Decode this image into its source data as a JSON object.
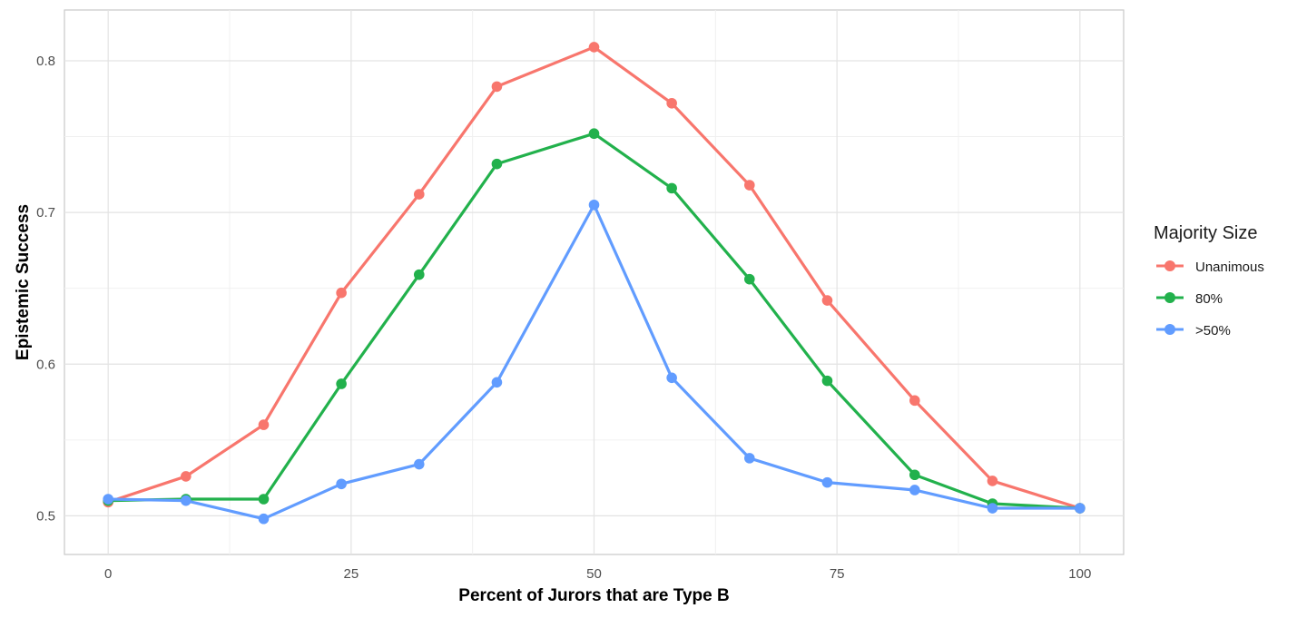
{
  "chart_data": {
    "type": "line",
    "title": "",
    "xlabel": "Percent of Jurors that are Type B",
    "ylabel": "Epistemic Success",
    "xlim": [
      -4.5,
      104.5
    ],
    "ylim": [
      0.4745,
      0.8335
    ],
    "x_ticks": [
      0,
      25,
      50,
      75,
      100
    ],
    "x_tick_labels": [
      "0",
      "25",
      "50",
      "75",
      "100"
    ],
    "y_ticks": [
      0.5,
      0.6,
      0.7,
      0.8
    ],
    "y_tick_labels": [
      "0.5",
      "0.6",
      "0.7",
      "0.8"
    ],
    "grid": true,
    "legend": {
      "title": "Majority Size",
      "position": "right"
    },
    "x": [
      0,
      8,
      16,
      24,
      32,
      40,
      50,
      58,
      66,
      74,
      83,
      91,
      100
    ],
    "series": [
      {
        "name": "Unanimous",
        "color": "#F8766D",
        "values": [
          0.509,
          0.526,
          0.56,
          0.647,
          0.712,
          0.783,
          0.809,
          0.772,
          0.718,
          0.642,
          0.576,
          0.523,
          0.505
        ]
      },
      {
        "name": "80%",
        "color": "#22B14C",
        "values": [
          0.51,
          0.511,
          0.511,
          0.587,
          0.659,
          0.732,
          0.752,
          0.716,
          0.656,
          0.589,
          0.527,
          0.508,
          0.505
        ]
      },
      {
        "name": ">50%",
        "color": "#619CFF",
        "values": [
          0.511,
          0.51,
          0.498,
          0.521,
          0.534,
          0.588,
          0.705,
          0.591,
          0.538,
          0.522,
          0.517,
          0.505,
          0.505
        ]
      }
    ]
  }
}
